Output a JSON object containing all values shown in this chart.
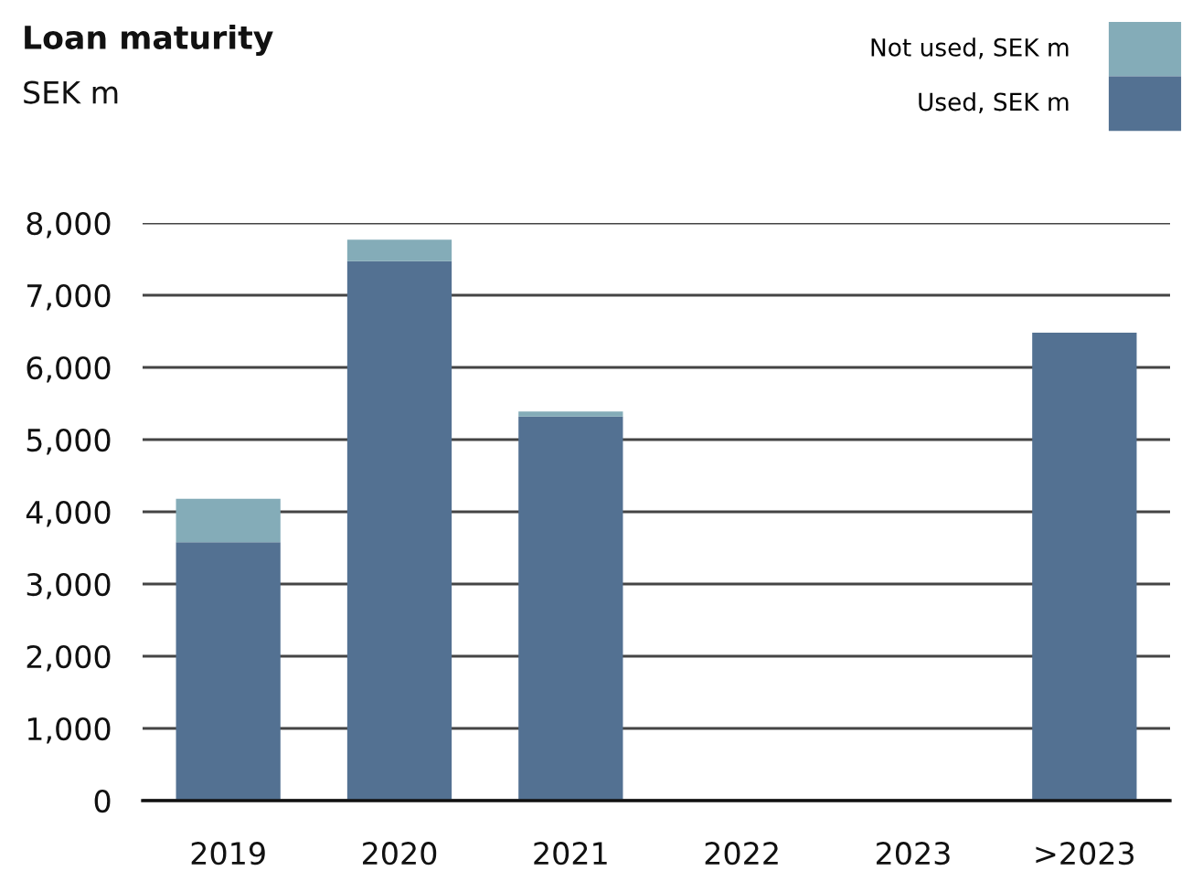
{
  "chart_data": {
    "type": "bar",
    "title": "Loan maturity",
    "subtitle": "SEK m",
    "categories": [
      "2019",
      "2020",
      "2021",
      "2022",
      "2023",
      ">2023"
    ],
    "stacked": true,
    "series": [
      {
        "name": "Used, SEK m",
        "color": "#537192",
        "values": [
          3580,
          7470,
          5320,
          0,
          0,
          6480
        ]
      },
      {
        "name": "Not used, SEK m",
        "color": "#84acb8",
        "values": [
          600,
          300,
          70,
          0,
          0,
          0
        ]
      }
    ],
    "ylim": [
      0,
      8000
    ],
    "yticks": [
      {
        "value": 0,
        "label": "0"
      },
      {
        "value": 1000,
        "label": "1,000"
      },
      {
        "value": 2000,
        "label": "2,000"
      },
      {
        "value": 3000,
        "label": "3,000"
      },
      {
        "value": 4000,
        "label": "4,000"
      },
      {
        "value": 5000,
        "label": "5,000"
      },
      {
        "value": 6000,
        "label": "6,000"
      },
      {
        "value": 7000,
        "label": "7,000"
      },
      {
        "value": 8000,
        "label": "8,000"
      }
    ],
    "grid": "y",
    "legend": "top right"
  }
}
